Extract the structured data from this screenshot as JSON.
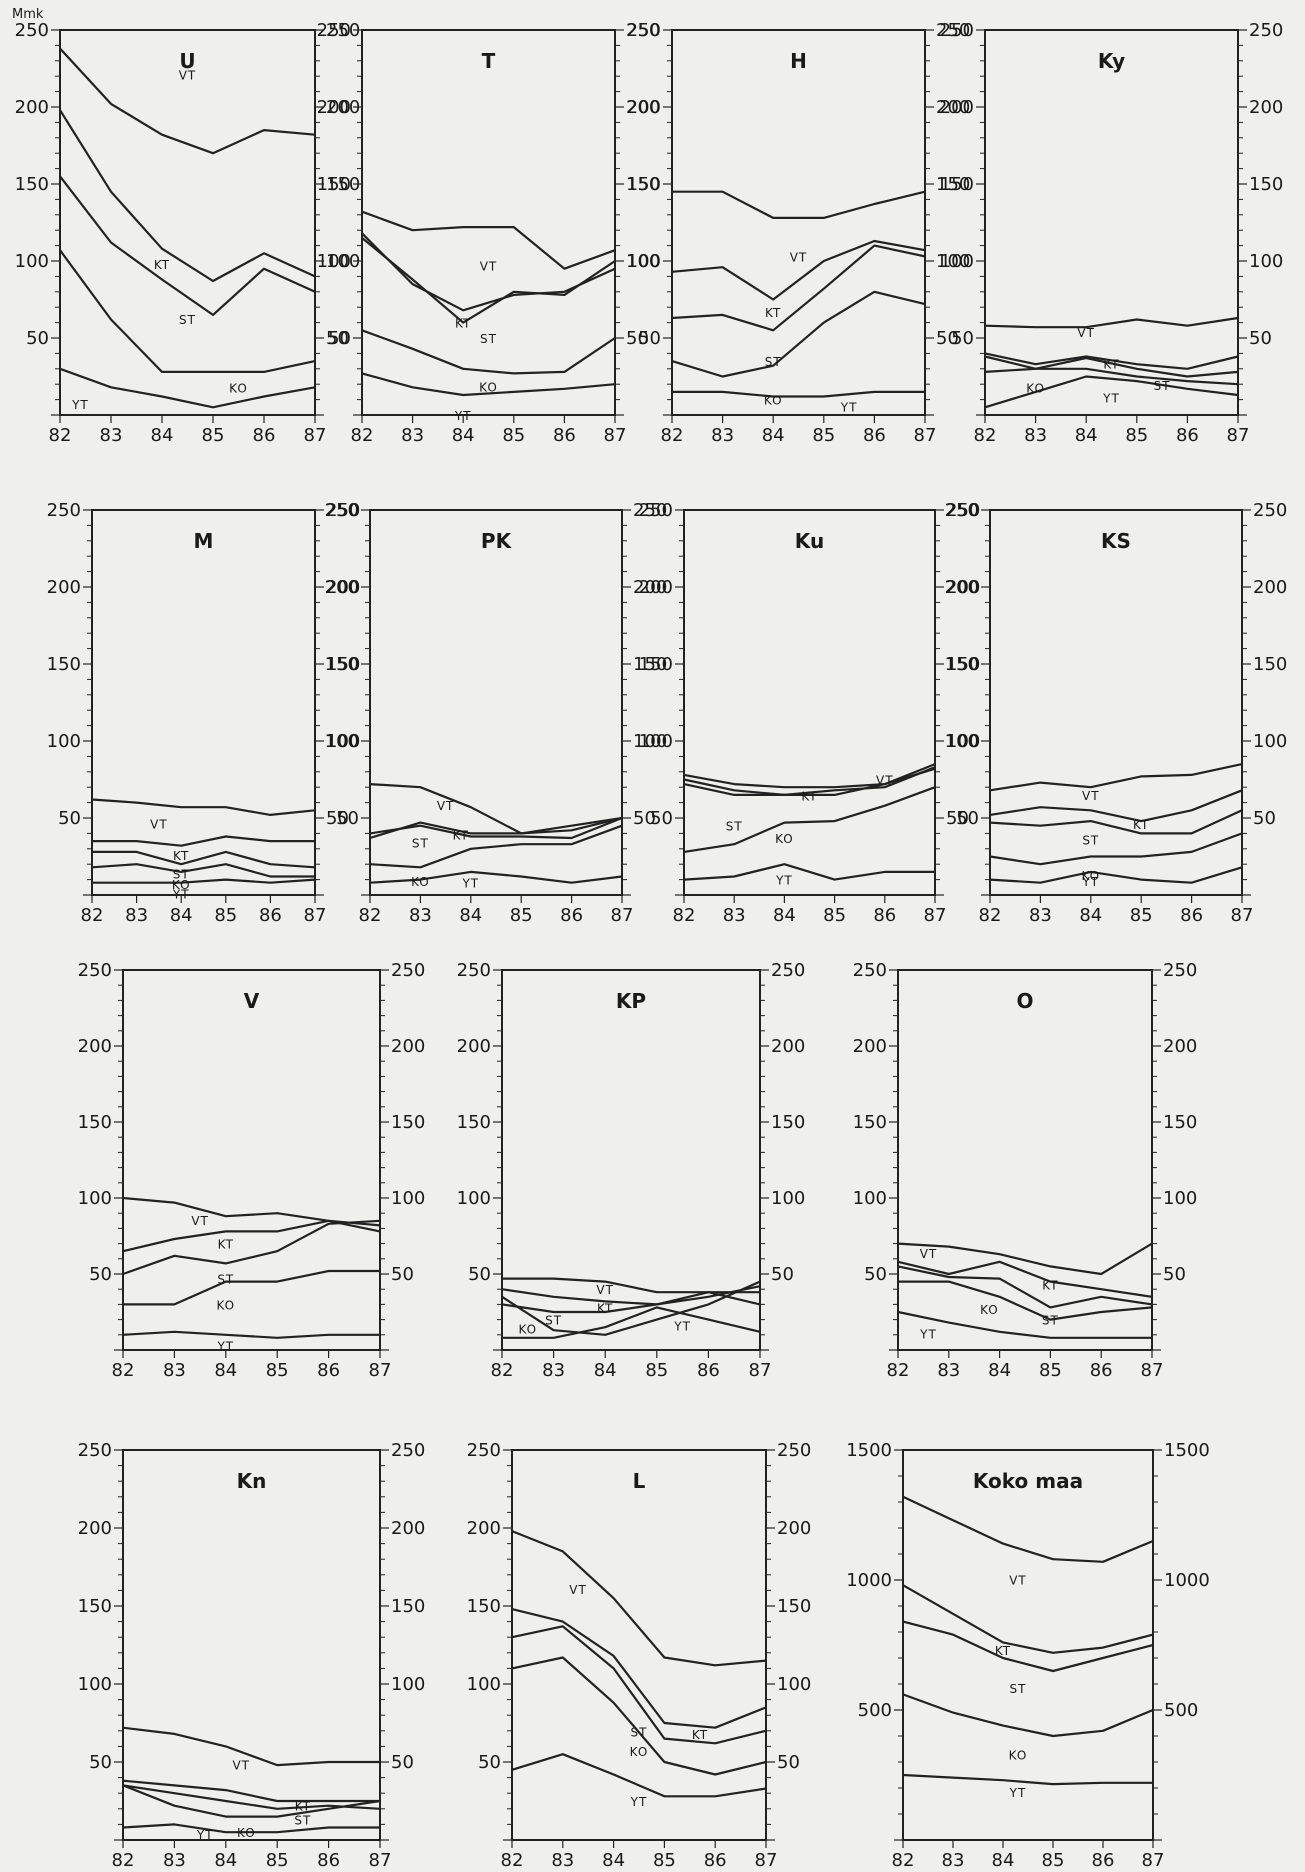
{
  "figure": {
    "unit_label": "Mmk"
  },
  "chart_data": [
    {
      "type": "line",
      "title": "U",
      "x": [
        82,
        83,
        84,
        85,
        86,
        87
      ],
      "ylim": [
        0,
        250
      ],
      "series": [
        {
          "name": "YT",
          "values": [
            30,
            18,
            12,
            5,
            12,
            18
          ]
        },
        {
          "name": "KO",
          "values": [
            107,
            62,
            28,
            28,
            28,
            35
          ]
        },
        {
          "name": "ST",
          "values": [
            155,
            112,
            88,
            65,
            95,
            80
          ]
        },
        {
          "name": "KT",
          "values": [
            198,
            145,
            108,
            87,
            105,
            90
          ]
        },
        {
          "name": "VT",
          "values": [
            238,
            202,
            182,
            170,
            185,
            182
          ]
        }
      ]
    },
    {
      "type": "line",
      "title": "T",
      "x": [
        82,
        83,
        84,
        85,
        86,
        87
      ],
      "ylim": [
        0,
        250
      ],
      "series": [
        {
          "name": "YT",
          "values": [
            27,
            18,
            13,
            15,
            17,
            20
          ]
        },
        {
          "name": "KO",
          "values": [
            55,
            43,
            30,
            27,
            28,
            50
          ]
        },
        {
          "name": "ST",
          "values": [
            115,
            88,
            60,
            80,
            78,
            100
          ]
        },
        {
          "name": "KT",
          "values": [
            118,
            85,
            68,
            78,
            80,
            95
          ]
        },
        {
          "name": "VT",
          "values": [
            132,
            120,
            122,
            122,
            95,
            107
          ]
        }
      ]
    },
    {
      "type": "line",
      "title": "H",
      "x": [
        82,
        83,
        84,
        85,
        86,
        87
      ],
      "ylim": [
        0,
        250
      ],
      "series": [
        {
          "name": "YT",
          "values": [
            15,
            15,
            12,
            12,
            15,
            15
          ]
        },
        {
          "name": "KO",
          "values": [
            35,
            25,
            32,
            60,
            80,
            72
          ]
        },
        {
          "name": "ST",
          "values": [
            63,
            65,
            55,
            82,
            110,
            103
          ]
        },
        {
          "name": "KT",
          "values": [
            93,
            96,
            75,
            100,
            113,
            107
          ]
        },
        {
          "name": "VT",
          "values": [
            145,
            145,
            128,
            128,
            137,
            145
          ]
        }
      ]
    },
    {
      "type": "line",
      "title": "Ky",
      "x": [
        82,
        83,
        84,
        85,
        86,
        87
      ],
      "ylim": [
        0,
        250
      ],
      "series": [
        {
          "name": "YT",
          "values": [
            5,
            15,
            25,
            22,
            17,
            13
          ]
        },
        {
          "name": "KO",
          "values": [
            28,
            30,
            30,
            25,
            22,
            20
          ]
        },
        {
          "name": "ST",
          "values": [
            38,
            30,
            37,
            30,
            25,
            28
          ]
        },
        {
          "name": "KT",
          "values": [
            40,
            33,
            38,
            33,
            30,
            38
          ]
        },
        {
          "name": "VT",
          "values": [
            58,
            57,
            57,
            62,
            58,
            63
          ]
        }
      ]
    },
    {
      "type": "line",
      "title": "M",
      "x": [
        82,
        83,
        84,
        85,
        86,
        87
      ],
      "ylim": [
        0,
        250
      ],
      "series": [
        {
          "name": "YT",
          "values": [
            8,
            8,
            8,
            10,
            8,
            10
          ]
        },
        {
          "name": "KO",
          "values": [
            18,
            20,
            15,
            20,
            12,
            12
          ]
        },
        {
          "name": "ST",
          "values": [
            28,
            28,
            20,
            28,
            20,
            18
          ]
        },
        {
          "name": "KT",
          "values": [
            35,
            35,
            32,
            38,
            35,
            35
          ]
        },
        {
          "name": "VT",
          "values": [
            62,
            60,
            57,
            57,
            52,
            55
          ]
        }
      ]
    },
    {
      "type": "line",
      "title": "PK",
      "x": [
        82,
        83,
        84,
        85,
        86,
        87
      ],
      "ylim": [
        0,
        250
      ],
      "series": [
        {
          "name": "YT",
          "values": [
            8,
            10,
            15,
            12,
            8,
            12
          ]
        },
        {
          "name": "KO",
          "values": [
            20,
            18,
            30,
            33,
            33,
            45
          ]
        },
        {
          "name": "ST",
          "values": [
            37,
            47,
            40,
            40,
            45,
            50
          ]
        },
        {
          "name": "KT",
          "values": [
            40,
            45,
            38,
            38,
            37,
            50
          ]
        },
        {
          "name": "VT",
          "values": [
            72,
            70,
            57,
            40,
            42,
            50
          ]
        }
      ]
    },
    {
      "type": "line",
      "title": "Ku",
      "x": [
        82,
        83,
        84,
        85,
        86,
        87
      ],
      "ylim": [
        0,
        250
      ],
      "series": [
        {
          "name": "YT",
          "values": [
            10,
            12,
            20,
            10,
            15,
            15
          ]
        },
        {
          "name": "KO",
          "values": [
            28,
            33,
            47,
            48,
            58,
            70
          ]
        },
        {
          "name": "ST",
          "values": [
            72,
            65,
            65,
            65,
            72,
            82
          ]
        },
        {
          "name": "KT",
          "values": [
            75,
            68,
            65,
            68,
            70,
            83
          ]
        },
        {
          "name": "VT",
          "values": [
            78,
            72,
            70,
            70,
            72,
            85
          ]
        }
      ]
    },
    {
      "type": "line",
      "title": "KS",
      "x": [
        82,
        83,
        84,
        85,
        86,
        87
      ],
      "ylim": [
        0,
        250
      ],
      "series": [
        {
          "name": "YT",
          "values": [
            10,
            8,
            15,
            10,
            8,
            18
          ]
        },
        {
          "name": "KO",
          "values": [
            25,
            20,
            25,
            25,
            28,
            40
          ]
        },
        {
          "name": "ST",
          "values": [
            47,
            45,
            48,
            40,
            40,
            55
          ]
        },
        {
          "name": "KT",
          "values": [
            52,
            57,
            55,
            48,
            55,
            68
          ]
        },
        {
          "name": "VT",
          "values": [
            68,
            73,
            70,
            77,
            78,
            85
          ]
        }
      ]
    },
    {
      "type": "line",
      "title": "V",
      "x": [
        82,
        83,
        84,
        85,
        86,
        87
      ],
      "ylim": [
        0,
        250
      ],
      "series": [
        {
          "name": "YT",
          "values": [
            10,
            12,
            10,
            8,
            10,
            10
          ]
        },
        {
          "name": "KO",
          "values": [
            30,
            30,
            45,
            45,
            52,
            52
          ]
        },
        {
          "name": "ST",
          "values": [
            50,
            62,
            57,
            65,
            83,
            85
          ]
        },
        {
          "name": "KT",
          "values": [
            65,
            73,
            78,
            78,
            85,
            78
          ]
        },
        {
          "name": "VT",
          "values": [
            100,
            97,
            88,
            90,
            85,
            82
          ]
        }
      ]
    },
    {
      "type": "line",
      "title": "KP",
      "x": [
        82,
        83,
        84,
        85,
        86,
        87
      ],
      "ylim": [
        0,
        250
      ],
      "series": [
        {
          "name": "YT",
          "values": [
            8,
            8,
            15,
            28,
            20,
            12
          ]
        },
        {
          "name": "KO",
          "values": [
            35,
            13,
            10,
            20,
            30,
            45
          ]
        },
        {
          "name": "ST",
          "values": [
            30,
            25,
            25,
            30,
            38,
            30
          ]
        },
        {
          "name": "KT",
          "values": [
            40,
            35,
            32,
            30,
            35,
            42
          ]
        },
        {
          "name": "VT",
          "values": [
            47,
            47,
            45,
            38,
            38,
            38
          ]
        }
      ]
    },
    {
      "type": "line",
      "title": "O",
      "x": [
        82,
        83,
        84,
        85,
        86,
        87
      ],
      "ylim": [
        0,
        250
      ],
      "series": [
        {
          "name": "YT",
          "values": [
            25,
            18,
            12,
            8,
            8,
            8
          ]
        },
        {
          "name": "KO",
          "values": [
            45,
            45,
            35,
            20,
            25,
            28
          ]
        },
        {
          "name": "ST",
          "values": [
            55,
            48,
            47,
            28,
            35,
            30
          ]
        },
        {
          "name": "KT",
          "values": [
            58,
            50,
            58,
            45,
            40,
            35
          ]
        },
        {
          "name": "VT",
          "values": [
            70,
            68,
            63,
            55,
            50,
            70
          ]
        }
      ]
    },
    {
      "type": "line",
      "title": "Kn",
      "x": [
        82,
        83,
        84,
        85,
        86,
        87
      ],
      "ylim": [
        0,
        250
      ],
      "series": [
        {
          "name": "YT",
          "values": [
            8,
            10,
            5,
            5,
            8,
            8
          ]
        },
        {
          "name": "KO",
          "values": [
            35,
            22,
            15,
            15,
            20,
            25
          ]
        },
        {
          "name": "ST",
          "values": [
            35,
            30,
            25,
            20,
            22,
            20
          ]
        },
        {
          "name": "KT",
          "values": [
            38,
            35,
            32,
            25,
            25,
            25
          ]
        },
        {
          "name": "VT",
          "values": [
            72,
            68,
            60,
            48,
            50,
            50
          ]
        }
      ]
    },
    {
      "type": "line",
      "title": "L",
      "x": [
        82,
        83,
        84,
        85,
        86,
        87
      ],
      "ylim": [
        0,
        250
      ],
      "series": [
        {
          "name": "YT",
          "values": [
            45,
            55,
            42,
            28,
            28,
            33
          ]
        },
        {
          "name": "KO",
          "values": [
            110,
            117,
            88,
            50,
            42,
            50
          ]
        },
        {
          "name": "ST",
          "values": [
            130,
            137,
            110,
            65,
            62,
            70
          ]
        },
        {
          "name": "KT",
          "values": [
            148,
            140,
            118,
            75,
            72,
            85
          ]
        },
        {
          "name": "VT",
          "values": [
            198,
            185,
            155,
            117,
            112,
            115
          ]
        }
      ]
    },
    {
      "type": "line",
      "title": "Koko maa",
      "x": [
        82,
        83,
        84,
        85,
        86,
        87
      ],
      "ylim": [
        0,
        1500
      ],
      "series": [
        {
          "name": "YT",
          "values": [
            250,
            240,
            230,
            215,
            220,
            220
          ]
        },
        {
          "name": "KO",
          "values": [
            560,
            490,
            440,
            400,
            420,
            500
          ]
        },
        {
          "name": "ST",
          "values": [
            840,
            790,
            700,
            650,
            700,
            750
          ]
        },
        {
          "name": "KT",
          "values": [
            980,
            870,
            760,
            720,
            740,
            790
          ]
        },
        {
          "name": "VT",
          "values": [
            1320,
            1230,
            1140,
            1080,
            1070,
            1150
          ]
        }
      ]
    }
  ]
}
